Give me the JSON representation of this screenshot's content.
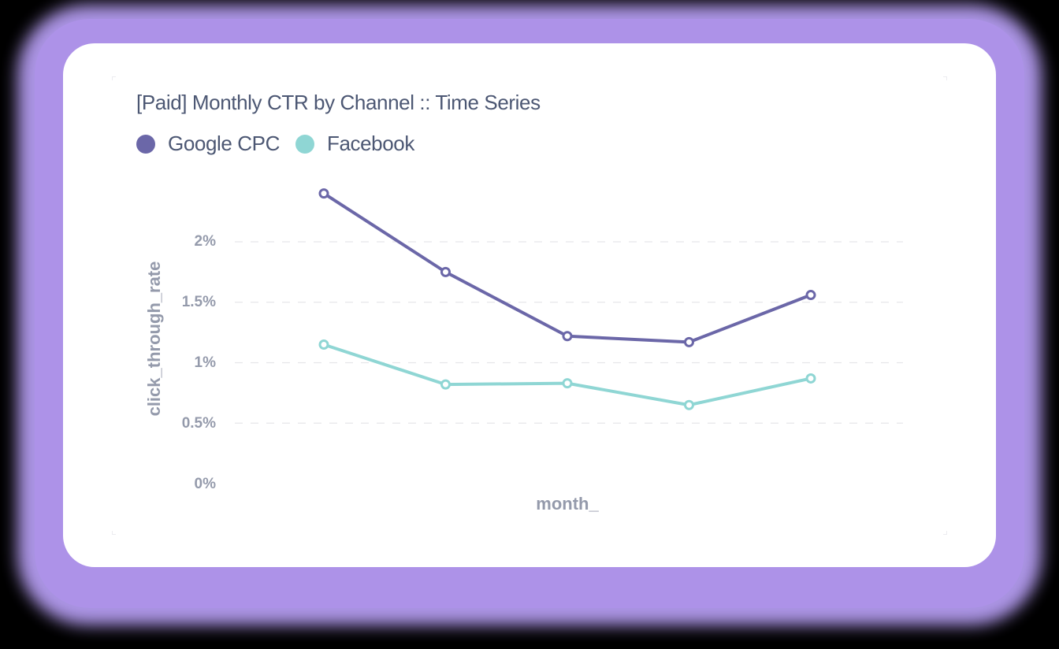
{
  "card": {
    "title": "[Paid] Monthly CTR by Channel :: Time Series"
  },
  "legend": [
    {
      "label": "Google CPC",
      "color": "#6b67a8"
    },
    {
      "label": "Facebook",
      "color": "#8fd6d4"
    }
  ],
  "axes": {
    "y_label": "click_through_rate",
    "x_label": "month_",
    "y_ticks": [
      "2%",
      "1.5%",
      "1%",
      "0.5%",
      "0%"
    ]
  },
  "colors": {
    "google": "#6b67a8",
    "facebook": "#8fd6d4",
    "text": "#4c5773",
    "axis_text": "#949aab",
    "grid": "#e6e6ea",
    "glow": "#ad92e8"
  },
  "chart_data": {
    "type": "line",
    "title": "[Paid] Monthly CTR by Channel :: Time Series",
    "xlabel": "month_",
    "ylabel": "click_through_rate",
    "x": [
      1,
      2,
      3,
      4,
      5
    ],
    "x_tick_labels": [],
    "y_tick_labels": [
      "0%",
      "0.5%",
      "1%",
      "1.5%",
      "2%"
    ],
    "ylim": [
      0,
      2.5
    ],
    "y_unit": "%",
    "grid": "horizontal dashed",
    "legend_position": "top-left",
    "series": [
      {
        "name": "Google CPC",
        "color": "#6b67a8",
        "values": [
          2.4,
          1.75,
          1.22,
          1.17,
          1.56
        ]
      },
      {
        "name": "Facebook",
        "color": "#8fd6d4",
        "values": [
          1.15,
          0.82,
          0.83,
          0.65,
          0.87
        ]
      }
    ]
  }
}
